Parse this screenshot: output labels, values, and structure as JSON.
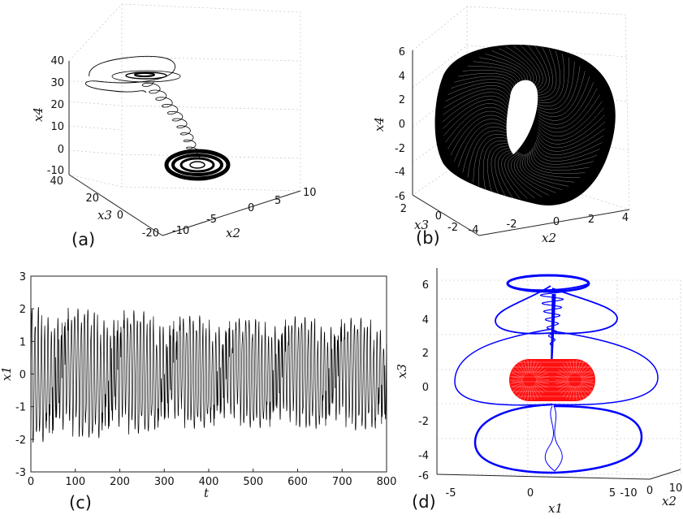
{
  "panels": [
    {
      "id": "a",
      "label": "(a)"
    },
    {
      "id": "b",
      "label": "(b)"
    },
    {
      "id": "c",
      "label": "(c)"
    },
    {
      "id": "d",
      "label": "(d)"
    }
  ],
  "chart_data": [
    {
      "panel": "(a)",
      "type": "line",
      "view": "3d",
      "xlabel": "x2",
      "ylabel": "x3",
      "zlabel": "x4",
      "x_ticks": [
        "-10",
        "-5",
        "0",
        "5",
        "10"
      ],
      "y_ticks": [
        "-20",
        "0",
        "20",
        "40"
      ],
      "z_ticks": [
        "-10",
        "0",
        "10",
        "20",
        "30",
        "40"
      ],
      "xlim": [
        -10,
        10
      ],
      "ylim": [
        -20,
        40
      ],
      "zlim": [
        -10,
        40
      ],
      "series_color": "#000000",
      "description_free": true
    },
    {
      "panel": "(b)",
      "type": "line",
      "view": "3d",
      "xlabel": "x2",
      "ylabel": "x3",
      "zlabel": "x4",
      "x_ticks": [
        "-4",
        "-2",
        "0",
        "2",
        "4"
      ],
      "y_ticks": [
        "-2",
        "0",
        "2"
      ],
      "z_ticks": [
        "-6",
        "-4",
        "-2",
        "0",
        "2",
        "4",
        "6"
      ],
      "xlim": [
        -4,
        4
      ],
      "ylim": [
        -2,
        2
      ],
      "zlim": [
        -6,
        6
      ],
      "series_color": "#000000"
    },
    {
      "panel": "(c)",
      "type": "line",
      "xlabel": "t",
      "ylabel": "x1",
      "x_ticks": [
        "0",
        "100",
        "200",
        "300",
        "400",
        "500",
        "600",
        "700",
        "800"
      ],
      "y_ticks": [
        "-3",
        "-2",
        "-1",
        "0",
        "1",
        "2",
        "3"
      ],
      "xlim": [
        0,
        800
      ],
      "ylim": [
        -3,
        3
      ],
      "series_color": "#000000",
      "envelope": {
        "t": [
          0,
          100,
          200,
          300,
          400,
          500,
          600,
          700,
          800
        ],
        "max": [
          2.5,
          2.4,
          2.35,
          2.2,
          2.1,
          2.05,
          2.1,
          2.05,
          2.0
        ],
        "min": [
          -2.5,
          -2.4,
          -2.3,
          -2.05,
          -1.95,
          -1.95,
          -2.0,
          -2.05,
          -2.05
        ]
      }
    },
    {
      "panel": "(d)",
      "type": "line",
      "view": "3d",
      "xlabel": "x1",
      "ylabel": "x2",
      "zlabel": "x3",
      "x_ticks": [
        "-5",
        "0",
        "5"
      ],
      "y_ticks": [
        "-10",
        "0",
        "10"
      ],
      "z_ticks": [
        "-6",
        "-4",
        "-2",
        "0",
        "2",
        "4",
        "6"
      ],
      "xlim": [
        -5,
        5
      ],
      "ylim": [
        -10,
        10
      ],
      "zlim": [
        -6,
        6
      ],
      "series": [
        {
          "color": "#0000ff"
        },
        {
          "color": "#ff0000"
        }
      ]
    }
  ]
}
